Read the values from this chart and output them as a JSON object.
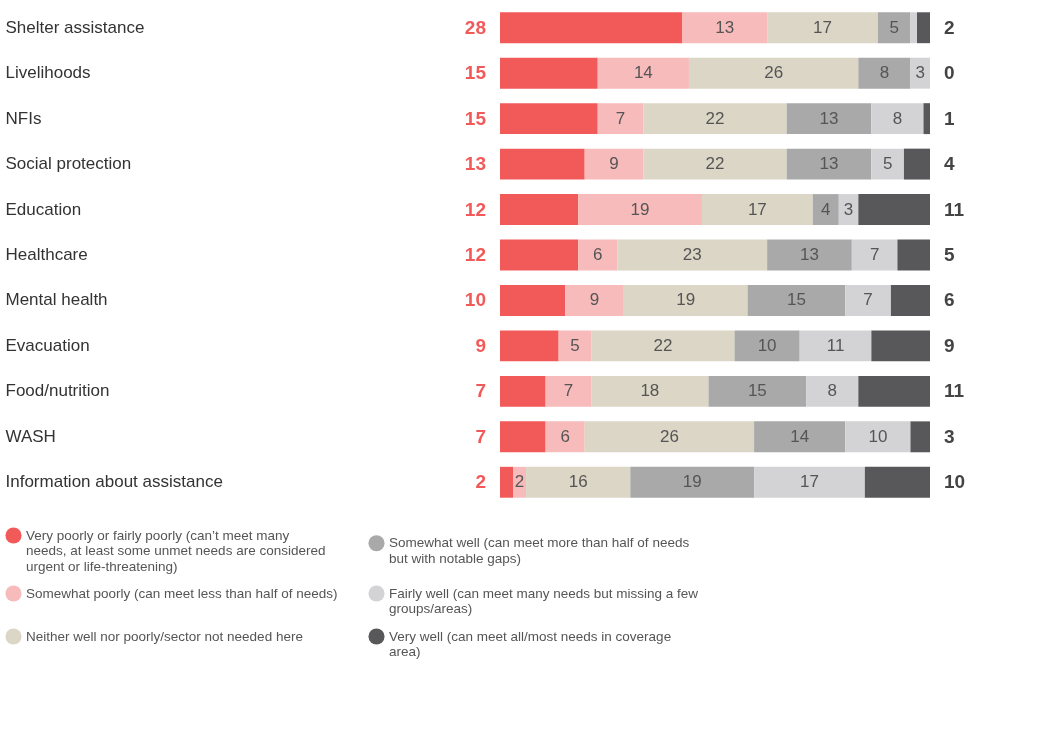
{
  "chart_data": {
    "type": "bar",
    "orientation": "horizontal",
    "stacked": true,
    "legend": "bottom",
    "categories": [
      "Shelter assistance",
      "Livelihoods",
      "NFIs",
      "Social protection",
      "Education",
      "Healthcare",
      "Mental health",
      "Evacuation",
      "Food/nutrition",
      "WASH",
      "Information about assistance"
    ],
    "series": [
      {
        "name": "Very poorly or fairly poorly (can’t meet many needs, at least some unmet needs are considered urgent or life-threatening)",
        "color": "#f25a5a",
        "values": [
          28,
          15,
          15,
          13,
          12,
          12,
          10,
          9,
          7,
          7,
          2
        ],
        "value_labels": [
          "28",
          "15",
          "15",
          "13",
          "12",
          "12",
          "10",
          "9",
          "7",
          "7",
          "2"
        ]
      },
      {
        "name": "Somewhat poorly (can meet less than half of needs)",
        "color": "#f7bbbb",
        "values": [
          13,
          14,
          7,
          9,
          19,
          6,
          9,
          5,
          7,
          6,
          2
        ],
        "value_labels": [
          "13",
          "14",
          "7",
          "9",
          "19",
          "6",
          "9",
          "5",
          "7",
          "6",
          "2"
        ]
      },
      {
        "name": "Neither well nor poorly/sector not needed here",
        "color": "#dcd6c6",
        "values": [
          17,
          26,
          22,
          22,
          17,
          23,
          19,
          22,
          18,
          26,
          16
        ],
        "value_labels": [
          "17",
          "26",
          "22",
          "22",
          "17",
          "23",
          "19",
          "22",
          "18",
          "26",
          "16"
        ]
      },
      {
        "name": "Somewhat well (can meet more than half of needs but with notable gaps)",
        "color": "#a9a9a9",
        "values": [
          5,
          8,
          13,
          13,
          4,
          13,
          15,
          10,
          15,
          14,
          19
        ],
        "value_labels": [
          "5",
          "8",
          "13",
          "13",
          "4",
          "13",
          "15",
          "10",
          "15",
          "14",
          "19"
        ]
      },
      {
        "name": "Fairly well (can meet many needs but missing a few groups/areas)",
        "color": "#d3d3d5",
        "values": [
          1,
          3,
          8,
          5,
          3,
          7,
          7,
          11,
          8,
          10,
          17
        ],
        "value_labels": [
          null,
          "3",
          "8",
          "5",
          "3",
          "7",
          "7",
          "11",
          "8",
          "10",
          "17"
        ]
      },
      {
        "name": "Very well (can meet all/most needs in coverage area)",
        "color": "#58585a",
        "values": [
          2,
          0,
          1,
          4,
          11,
          5,
          6,
          9,
          11,
          3,
          10
        ],
        "value_labels": [
          "2",
          "0",
          "1",
          "4",
          "11",
          "5",
          "6",
          "9",
          "11",
          "3",
          "10"
        ]
      }
    ]
  }
}
